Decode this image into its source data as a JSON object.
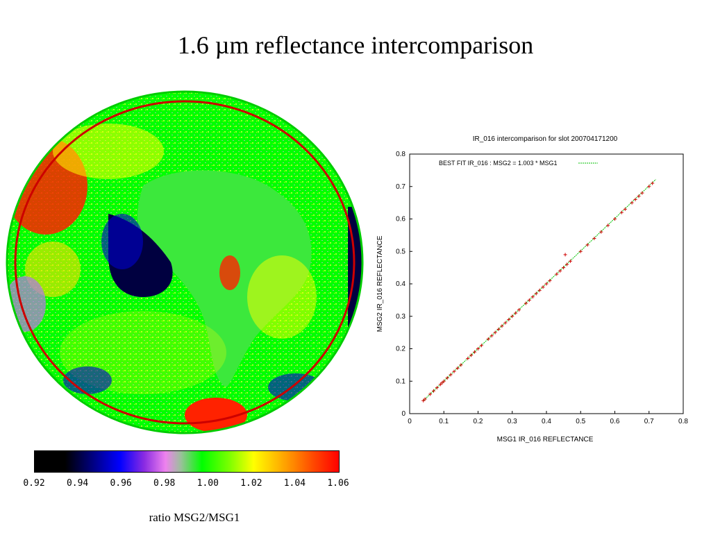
{
  "slide": {
    "title": "1.6 µm reflectance intercomparison",
    "colorbar_caption": "ratio MSG2/MSG1"
  },
  "colorbar": {
    "ticks": [
      "0.92",
      "0.94",
      "0.96",
      "0.98",
      "1.00",
      "1.02",
      "1.04",
      "1.06"
    ],
    "range": [
      0.92,
      1.06
    ],
    "colors": [
      "#000000",
      "#0000ff",
      "#ee82ee",
      "#00ff00",
      "#ffff00",
      "#ffa500",
      "#ff0000"
    ]
  },
  "earth_map": {
    "colors": {
      "ocean": "#00ff00",
      "land_africa": "#33ee33",
      "atlantic_dark": "#000040",
      "blue_patches": "#0000cc",
      "red_regions": "#ff2200",
      "yellow_regions": "#ffff00",
      "violet_regions": "#b07fd8",
      "outline_red": "#cc0000"
    }
  },
  "chart_data": {
    "type": "scatter",
    "title": "IR_016 intercomparison for slot 200704171200",
    "xlabel": "MSG1 IR_016 REFLECTANCE",
    "ylabel": "MSG2 IR_016 REFLECTANCE",
    "xlim": [
      0,
      0.8
    ],
    "ylim": [
      0,
      0.8
    ],
    "xticks": [
      "0",
      "0.1",
      "0.2",
      "0.3",
      "0.4",
      "0.5",
      "0.6",
      "0.7",
      "0.8"
    ],
    "yticks": [
      "0",
      "0.1",
      "0.2",
      "0.3",
      "0.4",
      "0.5",
      "0.6",
      "0.7",
      "0.8"
    ],
    "legend": "BEST FIT IR_016  : MSG2 = 1.003 * MSG1",
    "legend_position": "top-left",
    "fit_slope": 1.003,
    "fit_range": [
      0.04,
      0.72
    ],
    "point_color": "#d00000",
    "fit_color": "#00c000",
    "x": [
      0.04,
      0.045,
      0.06,
      0.07,
      0.08,
      0.09,
      0.095,
      0.1,
      0.11,
      0.12,
      0.13,
      0.14,
      0.15,
      0.17,
      0.18,
      0.19,
      0.2,
      0.21,
      0.23,
      0.24,
      0.25,
      0.26,
      0.27,
      0.28,
      0.29,
      0.3,
      0.31,
      0.32,
      0.34,
      0.35,
      0.36,
      0.37,
      0.38,
      0.39,
      0.4,
      0.41,
      0.43,
      0.44,
      0.45,
      0.455,
      0.46,
      0.47,
      0.5,
      0.52,
      0.54,
      0.56,
      0.58,
      0.6,
      0.62,
      0.63,
      0.65,
      0.66,
      0.67,
      0.68,
      0.7,
      0.71
    ],
    "y": [
      0.04,
      0.045,
      0.06,
      0.07,
      0.08,
      0.09,
      0.095,
      0.1,
      0.11,
      0.12,
      0.13,
      0.14,
      0.15,
      0.17,
      0.18,
      0.19,
      0.2,
      0.21,
      0.23,
      0.24,
      0.25,
      0.26,
      0.27,
      0.28,
      0.29,
      0.3,
      0.31,
      0.32,
      0.34,
      0.35,
      0.36,
      0.37,
      0.38,
      0.39,
      0.4,
      0.41,
      0.43,
      0.44,
      0.45,
      0.49,
      0.46,
      0.47,
      0.5,
      0.52,
      0.54,
      0.56,
      0.58,
      0.6,
      0.62,
      0.63,
      0.65,
      0.66,
      0.67,
      0.68,
      0.7,
      0.71
    ]
  }
}
